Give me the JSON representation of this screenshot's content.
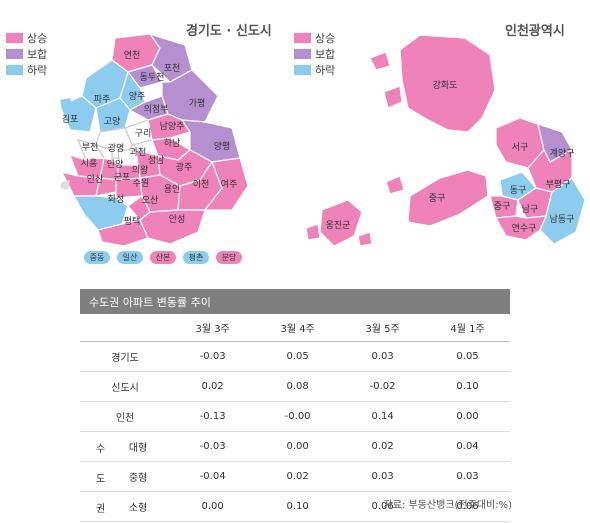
{
  "maps": {
    "gyeonggi": {
      "title": "경기도 · 신도시",
      "legend": [
        {
          "label": "상승",
          "color": "#ee82b9"
        },
        {
          "label": "보합",
          "color": "#b58fd0"
        },
        {
          "label": "하락",
          "color": "#8ccdef"
        }
      ],
      "regions": {
        "yeoncheon": "연천",
        "pocheon": "포천",
        "dongducheon": "동두천",
        "yangju": "양주",
        "paju": "파주",
        "uijeongbu": "의정부",
        "gapyeong": "가평",
        "gimpo": "김포",
        "goyang": "고양",
        "guri": "구리",
        "namyangju": "남양주",
        "bucheon": "부천",
        "gwangmyeong": "광명",
        "gwacheon": "과천",
        "hanam": "하남",
        "yangpyeong": "양평",
        "siheung": "시흥",
        "anyang": "안양",
        "uiwang": "의왕",
        "seongnam": "성남",
        "ansan": "안산",
        "gunpo": "군포",
        "suwon": "수원",
        "gwangju": "광주",
        "yongin": "용인",
        "icheon": "이천",
        "yeoju": "여주",
        "hwaseong": "화성",
        "osan": "오산",
        "pyeongtaek": "평택",
        "anseong": "안성"
      },
      "new_towns": [
        {
          "label": "중동",
          "color": "#8ccdef"
        },
        {
          "label": "일산",
          "color": "#8ccdef"
        },
        {
          "label": "산본",
          "color": "#ee82b9"
        },
        {
          "label": "평촌",
          "color": "#8ccdef"
        },
        {
          "label": "분당",
          "color": "#ee82b9"
        }
      ]
    },
    "incheon": {
      "title": "인천광역시",
      "legend": [
        {
          "label": "상승",
          "color": "#ee82b9"
        },
        {
          "label": "보합",
          "color": "#b58fd0"
        },
        {
          "label": "하락",
          "color": "#8ccdef"
        }
      ],
      "regions": {
        "ganghwa": "강화도",
        "seogu": "서구",
        "gyeyang": "계양구",
        "donggu": "동구",
        "bupyeong": "부평구",
        "junggu_island": "중구",
        "junggu": "중구",
        "namgu": "남구",
        "namdong": "남동구",
        "yeonsu": "연수구",
        "ongjin": "옹진군"
      }
    }
  },
  "table": {
    "title": "수도권 아파트 변동률 추이",
    "columns": [
      "3월 3주",
      "3월 4주",
      "3월 5주",
      "4월 1주"
    ],
    "rows": [
      {
        "label": "경기도",
        "values": [
          "-0.03",
          "0.05",
          "0.03",
          "0.05"
        ]
      },
      {
        "label": "신도시",
        "values": [
          "0.02",
          "0.08",
          "-0.02",
          "0.10"
        ]
      },
      {
        "label": "인천",
        "values": [
          "-0.13",
          "-0.00",
          "0.14",
          "0.00"
        ]
      }
    ],
    "group_label": [
      "수",
      "도",
      "권"
    ],
    "group_rows": [
      {
        "label": "대형",
        "values": [
          "-0.03",
          "0.00",
          "0.02",
          "0.04"
        ]
      },
      {
        "label": "중형",
        "values": [
          "-0.04",
          "0.02",
          "0.03",
          "0.03"
        ]
      },
      {
        "label": "소형",
        "values": [
          "0.00",
          "0.10",
          "0.06",
          "0.06"
        ]
      }
    ],
    "source": "자료: 부동산뱅크(전주대비:%)"
  }
}
